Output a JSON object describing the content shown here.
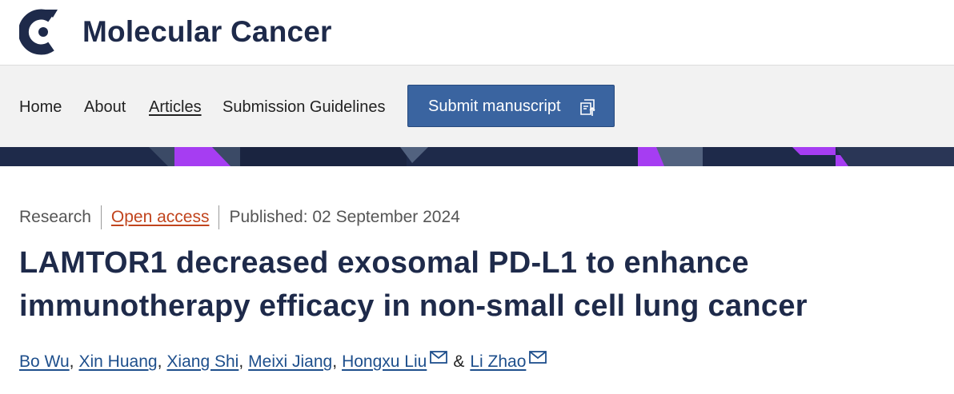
{
  "header": {
    "journal_title": "Molecular Cancer",
    "logo_icon": "springer-open-logo-icon",
    "brand_color": "#1e2a4a"
  },
  "nav": {
    "items": [
      {
        "label": "Home",
        "active": false
      },
      {
        "label": "About",
        "active": false
      },
      {
        "label": "Articles",
        "active": true
      },
      {
        "label": "Submission Guidelines",
        "active": false
      }
    ],
    "submit_label": "Submit manuscript",
    "submit_icon": "submit-manuscript-icon",
    "button_color": "#3a64a0"
  },
  "banner": {
    "colors": [
      "#1e2a4a",
      "#a63df2",
      "#52627f"
    ]
  },
  "article": {
    "type": "Research",
    "access": "Open access",
    "published": "Published: 02 September 2024",
    "title": "LAMTOR1 decreased exosomal PD-L1 to enhance immunotherapy efficacy in non-small cell lung cancer",
    "authors": [
      {
        "name": "Bo Wu",
        "suffix": ",",
        "mail": false
      },
      {
        "name": "Xin Huang",
        "suffix": ",",
        "mail": false
      },
      {
        "name": "Xiang Shi",
        "suffix": ",",
        "mail": false
      },
      {
        "name": "Meixi Jiang",
        "suffix": ",",
        "mail": false
      },
      {
        "name": "Hongxu Liu",
        "suffix": "",
        "mail": true
      },
      {
        "name": "Li Zhao",
        "suffix": "",
        "mail": true
      }
    ],
    "author_joiner": "&",
    "accent_color": "#c1441d"
  }
}
